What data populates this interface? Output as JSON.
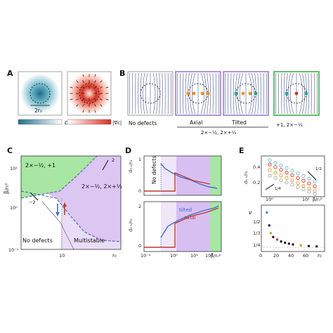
{
  "panel_labels": {
    "A": "A",
    "B": "B",
    "C": "C",
    "D": "D",
    "E": "E"
  },
  "panelA": {
    "scale_label": "2r₀",
    "colorbar_c": "c",
    "colorbar_grad": "|∇c|"
  },
  "panelB": {
    "caption_no_defects": "No defects",
    "caption_axial": "Axial",
    "caption_tilted": "Tilted",
    "caption_pair": "2×−½, 2×+½",
    "caption_plus_one": "+1, 2×−½",
    "frame_colors": {
      "purple": "#9b7fc6",
      "green": "#3fae4a"
    }
  },
  "panelC": {
    "region_green": "2×−½, +1",
    "region_purple": "2×−½, 2×+½",
    "region_none": "No defects",
    "region_multi": "Multistable",
    "slope_a": "−2",
    "slope_b": "2",
    "ylabel": "β̅/r₀²",
    "xlabel": "r₀",
    "yticks": [
      "10¹",
      "10⁰",
      "10⁻¹"
    ],
    "xticks": [
      "10"
    ],
    "colors": {
      "green": "#a8e6a3",
      "purple": "#dcc6f2",
      "light_purple": "#e9dcf7",
      "line": "#5a6fa8"
    }
  },
  "panelD": {
    "top_ylabel": "d₊₊/r₀",
    "bottom_ylabel": "d₊₊/r₀",
    "top_text": "No defects",
    "legend_tilted": "tilted",
    "legend_axial": "axial",
    "xlabel": "β̅/r₀²",
    "xticks": [
      "10⁻¹",
      "10⁰",
      "10¹",
      "10²"
    ],
    "top_yticks": [
      "1",
      "0"
    ],
    "bottom_yticks": [
      "2",
      "0"
    ]
  },
  "panelE": {
    "top_ylabel": "d₊₊/r₀",
    "top_yticks": [
      "0.4",
      "0.2"
    ],
    "top_xticks": [
      "10⁰",
      "10¹"
    ],
    "top_xlabel": "β̅/r₀²",
    "slope_half": "1/2",
    "slope_quarter": "1/4",
    "bottom_ylabel": "ν",
    "bottom_yticks": [
      "1/2",
      "1/3",
      "1/4"
    ],
    "bottom_xticks": [
      "0",
      "20",
      "40",
      "60"
    ],
    "bottom_xlabel": "r₀",
    "nu_points": [
      {
        "r0": 7,
        "nu": 0.52,
        "color": "#3b8bd0"
      },
      {
        "r0": 10,
        "nu": 0.42,
        "color": "#222"
      },
      {
        "r0": 12,
        "nu": 0.36,
        "color": "#e09a2a"
      },
      {
        "r0": 15,
        "nu": 0.33,
        "color": "#222"
      },
      {
        "r0": 20,
        "nu": 0.31,
        "color": "#c0392b"
      },
      {
        "r0": 25,
        "nu": 0.295,
        "color": "#222"
      },
      {
        "r0": 30,
        "nu": 0.285,
        "color": "#222"
      },
      {
        "r0": 35,
        "nu": 0.278,
        "color": "#222"
      },
      {
        "r0": 40,
        "nu": 0.272,
        "color": "#222"
      },
      {
        "r0": 50,
        "nu": 0.265,
        "color": "#e09a2a"
      },
      {
        "r0": 60,
        "nu": 0.26,
        "color": "#222"
      },
      {
        "r0": 70,
        "nu": 0.257,
        "color": "#222"
      }
    ]
  }
}
